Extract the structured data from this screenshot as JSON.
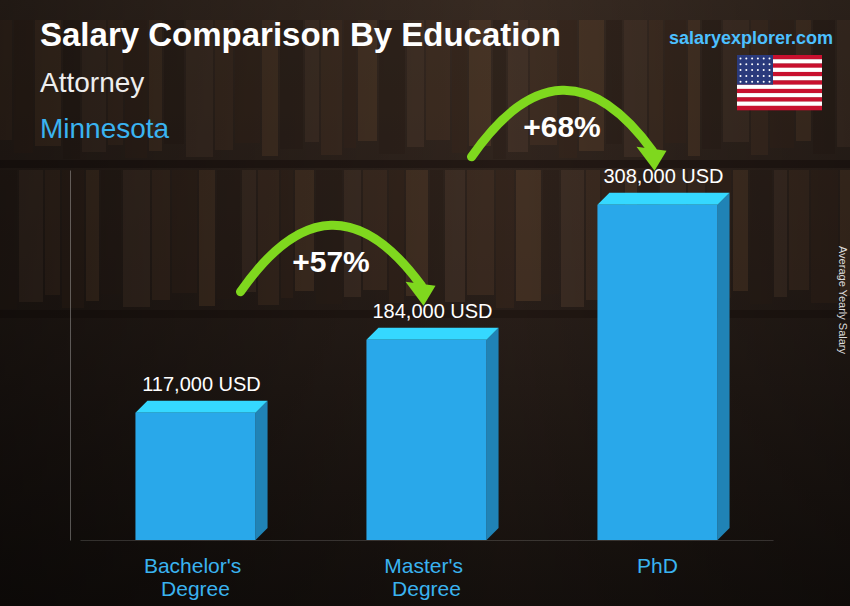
{
  "chart_data": {
    "type": "bar",
    "title": "Salary Comparison By Education",
    "subtitle": [
      "Attorney",
      "Minnesota"
    ],
    "source": "salaryexplorer.com",
    "ylabel": "Average Yearly Salary",
    "categories": [
      "Bachelor's Degree",
      "Master's Degree",
      "PhD"
    ],
    "values": [
      117000,
      184000,
      308000
    ],
    "value_labels": [
      "117,000 USD",
      "184,000 USD",
      "308,000 USD"
    ],
    "annotations": [
      "+57%",
      "+68%"
    ],
    "color": "#29a8ea",
    "ylim": [
      0,
      340000
    ],
    "yticks": [],
    "grid": false,
    "data_labels": true,
    "tick_labels": "x"
  }
}
